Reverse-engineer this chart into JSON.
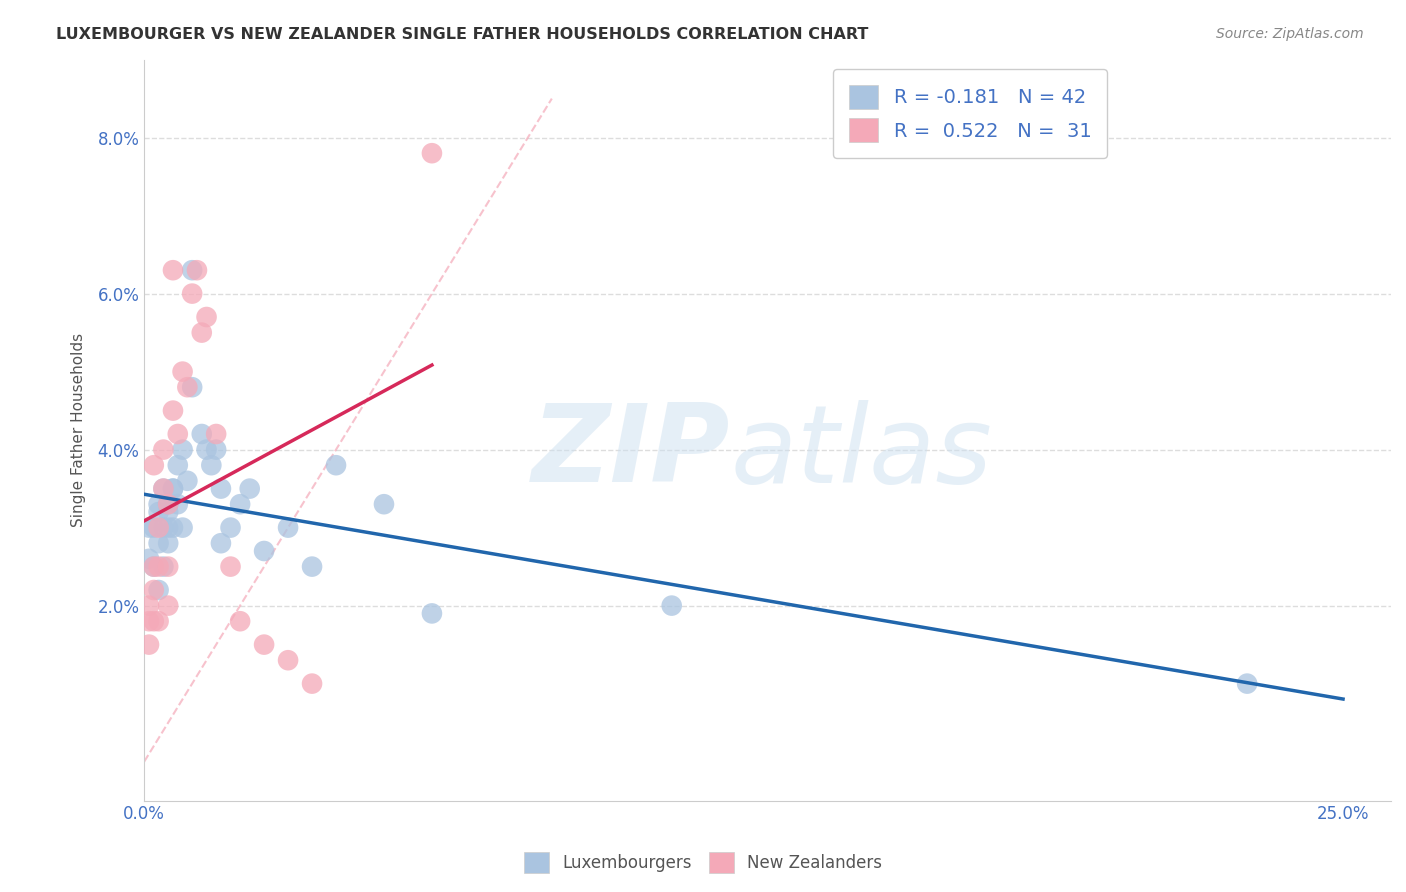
{
  "title": "LUXEMBOURGER VS NEW ZEALANDER SINGLE FATHER HOUSEHOLDS CORRELATION CHART",
  "source": "Source: ZipAtlas.com",
  "ylabel": "Single Father Households",
  "xlim": [
    0.0,
    0.26
  ],
  "ylim": [
    -0.005,
    0.09
  ],
  "xticks": [
    0.0,
    0.05,
    0.1,
    0.15,
    0.2,
    0.25
  ],
  "xtick_labels": [
    "0.0%",
    "",
    "",
    "",
    "",
    "25.0%"
  ],
  "yticks": [
    0.0,
    0.02,
    0.04,
    0.06,
    0.08
  ],
  "ytick_labels": [
    "",
    "2.0%",
    "4.0%",
    "6.0%",
    "8.0%"
  ],
  "luxembourgers_R": -0.181,
  "luxembourgers_N": 42,
  "new_zealanders_R": 0.522,
  "new_zealanders_N": 31,
  "blue_color": "#aac4e0",
  "blue_line_color": "#2166ac",
  "pink_color": "#f4a9b8",
  "pink_line_color": "#d6295a",
  "legend_blue_label": "R = -0.181   N = 42",
  "legend_pink_label": "R =  0.522   N =  31",
  "background_color": "#ffffff",
  "grid_color": "#dddddd",
  "blue_scatter_x": [
    0.001,
    0.001,
    0.002,
    0.002,
    0.003,
    0.003,
    0.003,
    0.003,
    0.004,
    0.004,
    0.004,
    0.005,
    0.005,
    0.005,
    0.005,
    0.006,
    0.006,
    0.006,
    0.007,
    0.007,
    0.008,
    0.008,
    0.009,
    0.01,
    0.01,
    0.012,
    0.013,
    0.014,
    0.015,
    0.016,
    0.016,
    0.018,
    0.02,
    0.022,
    0.025,
    0.03,
    0.035,
    0.04,
    0.05,
    0.06,
    0.11,
    0.23
  ],
  "blue_scatter_y": [
    0.03,
    0.026,
    0.03,
    0.025,
    0.032,
    0.028,
    0.022,
    0.033,
    0.035,
    0.03,
    0.025,
    0.033,
    0.032,
    0.03,
    0.028,
    0.035,
    0.03,
    0.035,
    0.033,
    0.038,
    0.04,
    0.03,
    0.036,
    0.063,
    0.048,
    0.042,
    0.04,
    0.038,
    0.04,
    0.035,
    0.028,
    0.03,
    0.033,
    0.035,
    0.027,
    0.03,
    0.025,
    0.038,
    0.033,
    0.019,
    0.02,
    0.01
  ],
  "pink_scatter_x": [
    0.001,
    0.001,
    0.001,
    0.002,
    0.002,
    0.002,
    0.002,
    0.003,
    0.003,
    0.003,
    0.004,
    0.004,
    0.005,
    0.005,
    0.005,
    0.006,
    0.006,
    0.007,
    0.008,
    0.009,
    0.01,
    0.011,
    0.012,
    0.013,
    0.015,
    0.018,
    0.02,
    0.025,
    0.03,
    0.035,
    0.06
  ],
  "pink_scatter_y": [
    0.02,
    0.018,
    0.015,
    0.038,
    0.025,
    0.022,
    0.018,
    0.03,
    0.025,
    0.018,
    0.035,
    0.04,
    0.033,
    0.025,
    0.02,
    0.063,
    0.045,
    0.042,
    0.05,
    0.048,
    0.06,
    0.063,
    0.055,
    0.057,
    0.042,
    0.025,
    0.018,
    0.015,
    0.013,
    0.01,
    0.078
  ]
}
